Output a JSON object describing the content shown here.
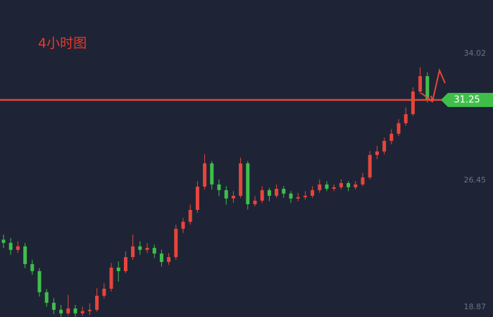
{
  "chart_data": {
    "type": "candlestick",
    "title": "4小时图",
    "ylim": [
      18.28,
      37.22
    ],
    "yticks": [
      34.02,
      26.45,
      18.87
    ],
    "price_line": 31.25,
    "up_color": "#e8453c",
    "down_color": "#3fbf4a",
    "line_color": "#e0483a",
    "ohlc": [
      [
        22.9,
        23.2,
        22.4,
        22.71
      ],
      [
        22.71,
        23.0,
        22.0,
        22.29
      ],
      [
        22.29,
        22.8,
        22.1,
        22.5
      ],
      [
        22.5,
        22.7,
        21.2,
        21.44
      ],
      [
        21.44,
        21.7,
        20.8,
        21.02
      ],
      [
        21.02,
        21.2,
        19.5,
        19.76
      ],
      [
        19.76,
        19.95,
        18.9,
        19.13
      ],
      [
        19.13,
        19.4,
        18.45,
        18.71
      ],
      [
        18.71,
        19.0,
        18.3,
        18.5
      ],
      [
        18.5,
        19.6,
        18.35,
        18.79
      ],
      [
        18.79,
        19.0,
        18.3,
        18.5
      ],
      [
        18.5,
        18.9,
        18.35,
        18.63
      ],
      [
        18.63,
        19.1,
        18.4,
        18.71
      ],
      [
        18.71,
        20.0,
        18.6,
        19.55
      ],
      [
        19.55,
        20.3,
        19.4,
        19.97
      ],
      [
        19.97,
        21.5,
        19.8,
        21.23
      ],
      [
        21.23,
        21.6,
        20.4,
        21.02
      ],
      [
        21.02,
        22.2,
        20.9,
        21.86
      ],
      [
        21.86,
        23.2,
        21.7,
        22.5
      ],
      [
        22.5,
        22.8,
        22.0,
        22.29
      ],
      [
        22.29,
        22.7,
        22.1,
        22.41
      ],
      [
        22.41,
        22.6,
        21.8,
        22.07
      ],
      [
        22.07,
        22.3,
        21.3,
        21.57
      ],
      [
        21.57,
        22.1,
        21.4,
        21.86
      ],
      [
        21.86,
        23.8,
        21.7,
        23.55
      ],
      [
        23.55,
        24.2,
        23.3,
        23.97
      ],
      [
        23.97,
        25.0,
        23.8,
        24.68
      ],
      [
        24.68,
        26.4,
        24.5,
        26.07
      ],
      [
        26.07,
        28.0,
        25.9,
        27.46
      ],
      [
        27.46,
        27.6,
        25.9,
        26.2
      ],
      [
        26.2,
        26.5,
        25.5,
        25.86
      ],
      [
        25.86,
        26.1,
        25.0,
        25.36
      ],
      [
        25.36,
        25.8,
        25.1,
        25.52
      ],
      [
        25.52,
        27.8,
        25.4,
        27.46
      ],
      [
        27.46,
        27.6,
        24.7,
        25.02
      ],
      [
        25.02,
        25.5,
        24.9,
        25.23
      ],
      [
        25.23,
        26.1,
        25.1,
        25.86
      ],
      [
        25.86,
        26.0,
        25.2,
        25.52
      ],
      [
        25.52,
        26.2,
        25.4,
        25.94
      ],
      [
        25.94,
        26.1,
        25.4,
        25.65
      ],
      [
        25.65,
        25.8,
        25.1,
        25.36
      ],
      [
        25.36,
        25.7,
        25.2,
        25.44
      ],
      [
        25.44,
        25.8,
        25.3,
        25.52
      ],
      [
        25.52,
        26.1,
        25.4,
        25.86
      ],
      [
        25.86,
        26.5,
        25.7,
        26.2
      ],
      [
        26.2,
        26.4,
        25.8,
        25.94
      ],
      [
        25.94,
        26.2,
        25.8,
        26.03
      ],
      [
        26.03,
        26.5,
        25.9,
        26.28
      ],
      [
        26.28,
        26.4,
        25.8,
        26.03
      ],
      [
        26.03,
        26.4,
        25.9,
        26.2
      ],
      [
        26.2,
        26.9,
        26.1,
        26.62
      ],
      [
        26.62,
        28.2,
        26.5,
        27.96
      ],
      [
        27.96,
        28.5,
        27.7,
        28.17
      ],
      [
        28.17,
        29.0,
        28.0,
        28.8
      ],
      [
        28.8,
        29.5,
        28.6,
        29.23
      ],
      [
        29.23,
        30.1,
        29.1,
        29.86
      ],
      [
        29.86,
        30.8,
        29.7,
        30.4
      ],
      [
        30.4,
        32.0,
        30.3,
        31.75
      ],
      [
        31.75,
        33.2,
        31.6,
        32.67
      ],
      [
        32.67,
        32.9,
        31.1,
        31.25
      ]
    ]
  }
}
